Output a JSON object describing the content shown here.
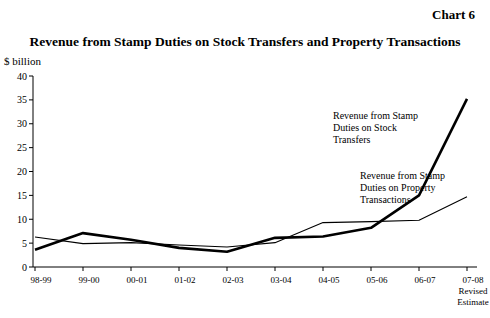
{
  "chart_data": {
    "type": "line",
    "chart_label": "Chart 6",
    "title": "Revenue from Stamp Duties on Stock Transfers and Property Transactions",
    "y_label": "$ billion",
    "categories": [
      "98-99",
      "99-00",
      "00-01",
      "01-02",
      "02-03",
      "03-04",
      "04-05",
      "05-06",
      "06-07",
      "07-08 Revised Estimate"
    ],
    "series": [
      {
        "name": "Revenue from Stamp Duties on Stock Transfers",
        "color": "#000000",
        "line_style": "thick",
        "values": [
          3.6,
          7.1,
          5.7,
          4.0,
          3.2,
          6.1,
          6.4,
          8.2,
          15.0,
          35.2
        ]
      },
      {
        "name": "Revenue from Stamp Duties on Property Transactions",
        "color": "#000000",
        "line_style": "thin",
        "values": [
          6.3,
          4.9,
          5.1,
          4.6,
          4.2,
          5.1,
          9.3,
          9.5,
          9.8,
          14.7
        ]
      }
    ],
    "ylim": [
      0,
      40
    ],
    "yticks": [
      0,
      5,
      10,
      15,
      20,
      25,
      30,
      35,
      40
    ],
    "grid": false
  }
}
